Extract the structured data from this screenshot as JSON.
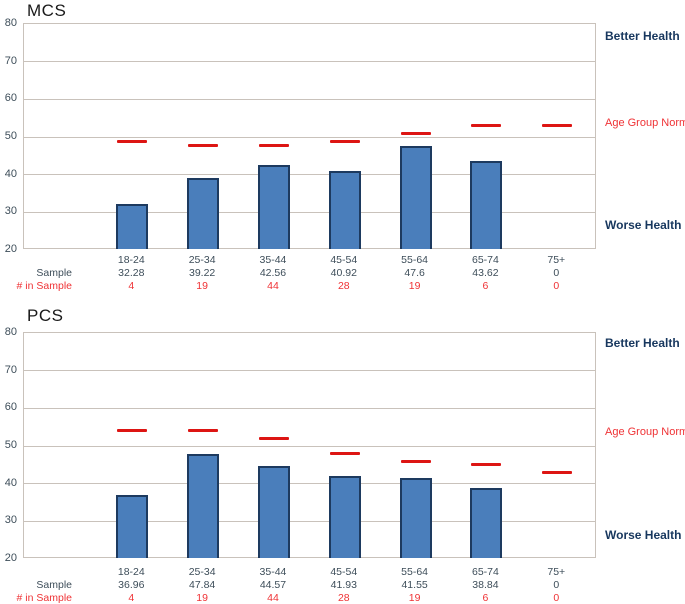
{
  "colors": {
    "bar_fill": "#4a7ebb",
    "bar_border": "#1d3a5f",
    "norm_red": "#dd1513",
    "text_red": "#ef3235",
    "navy": "#17375e",
    "grid": "#c9c2bb",
    "label": "#3d4d59"
  },
  "chart_data": [
    {
      "type": "bar",
      "title": "MCS",
      "categories": [
        "18-24",
        "25-34",
        "35-44",
        "45-54",
        "55-64",
        "65-74",
        "75+"
      ],
      "series": [
        {
          "name": "Sample",
          "style": "bar",
          "values": [
            32.28,
            39.22,
            42.56,
            40.92,
            47.6,
            43.62,
            0
          ]
        },
        {
          "name": "Age Group Norm",
          "style": "dash",
          "values": [
            48.8,
            47.8,
            47.8,
            48.8,
            51.0,
            53.0,
            53.0
          ]
        }
      ],
      "sample_display": [
        "32.28",
        "39.22",
        "42.56",
        "40.92",
        "47.6",
        "43.62",
        "0"
      ],
      "n_in_sample": [
        "4",
        "19",
        "44",
        "28",
        "19",
        "6",
        "0"
      ],
      "ylim": [
        20,
        80
      ],
      "yticks": [
        20,
        30,
        40,
        50,
        60,
        70,
        80
      ],
      "grid": "horizontal",
      "annotations": {
        "better": "Better Health",
        "worse": "Worse Health",
        "norm": "Age Group Norm"
      },
      "row_headers": {
        "sample": "Sample",
        "n": "# in Sample"
      }
    },
    {
      "type": "bar",
      "title": "PCS",
      "categories": [
        "18-24",
        "25-34",
        "35-44",
        "45-54",
        "55-64",
        "65-74",
        "75+"
      ],
      "series": [
        {
          "name": "Sample",
          "style": "bar",
          "values": [
            36.96,
            47.84,
            44.57,
            41.93,
            41.55,
            38.84,
            0
          ]
        },
        {
          "name": "Age Group Norm",
          "style": "dash",
          "values": [
            54.0,
            54.0,
            52.0,
            48.0,
            46.0,
            45.0,
            43.0
          ]
        }
      ],
      "sample_display": [
        "36.96",
        "47.84",
        "44.57",
        "41.93",
        "41.55",
        "38.84",
        "0"
      ],
      "n_in_sample": [
        "4",
        "19",
        "44",
        "28",
        "19",
        "6",
        "0"
      ],
      "ylim": [
        20,
        80
      ],
      "yticks": [
        20,
        30,
        40,
        50,
        60,
        70,
        80
      ],
      "grid": "horizontal",
      "annotations": {
        "better": "Better Health",
        "worse": "Worse Health",
        "norm": "Age Group Norm"
      },
      "row_headers": {
        "sample": "Sample",
        "n": "# in Sample"
      }
    }
  ]
}
